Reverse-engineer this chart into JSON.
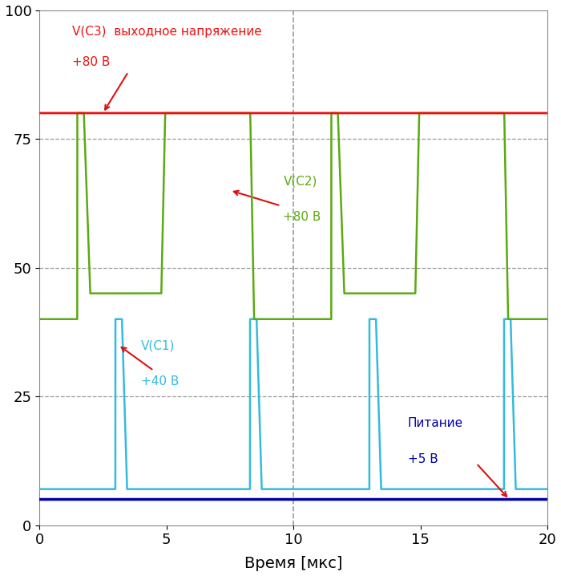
{
  "xlim": [
    0,
    20
  ],
  "ylim": [
    0,
    100
  ],
  "xlabel": "Время [мкс]",
  "xticks": [
    0,
    5,
    10,
    15,
    20
  ],
  "yticks": [
    0,
    25,
    50,
    75,
    100
  ],
  "grid_color": "#999999",
  "bg_color": "#ffffff",
  "vline_x": 10,
  "vc3_value": 80,
  "vc3_color": "#ee1111",
  "vc2_color": "#5aaa10",
  "vc2_base": 40,
  "vc2_mid": 45,
  "vc2_peak": 80,
  "vc1_color": "#33bbdd",
  "vc1_base": 7,
  "vc1_peak": 40,
  "supply_value": 5,
  "supply_color": "#0000aa",
  "arrow_color": "#dd1111",
  "figsize": [
    7.0,
    7.18
  ],
  "dpi": 100
}
